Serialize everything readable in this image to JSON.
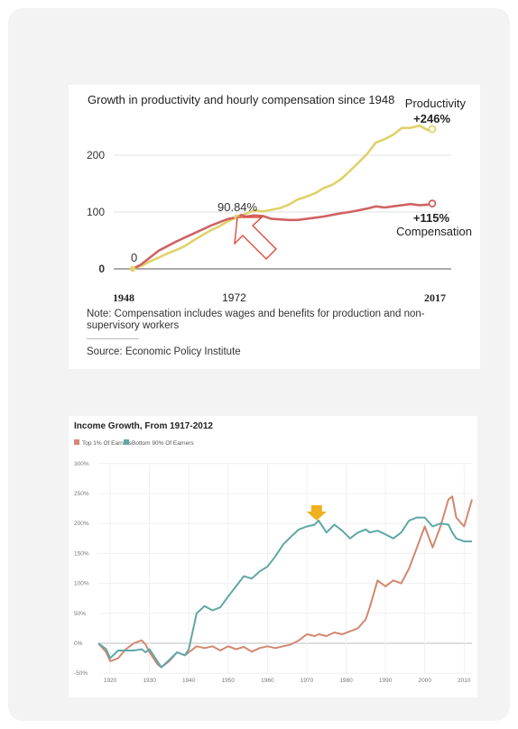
{
  "chart_data": [
    {
      "type": "line",
      "title": "Growth in productivity and hourly compensation since 1948",
      "x_tick_labels": [
        "1948",
        "1972",
        "2017"
      ],
      "y_tick_labels": [
        "0",
        "100",
        "200"
      ],
      "ylim": [
        -10,
        290
      ],
      "xlim": [
        1948,
        2017
      ],
      "grid": true,
      "annotations": {
        "start": "0",
        "mid": "90.84%",
        "productivity_name": "Productivity",
        "productivity_change": "+246%",
        "compensation_change": "+115%",
        "compensation_name": "Compensation"
      },
      "note": "Note: Compensation includes wages and benefits for production and non-supervisory workers",
      "source": "Source: Economic Policy Institute",
      "colors": {
        "productivity": "#e0d26a",
        "compensation": "#cf6363",
        "arrow": "#e04030"
      },
      "series": [
        {
          "key": "productivity",
          "x": [
            1948,
            1950,
            1952,
            1954,
            1956,
            1958,
            1960,
            1962,
            1964,
            1966,
            1968,
            1970,
            1972,
            1973,
            1974,
            1976,
            1978,
            1980,
            1982,
            1984,
            1986,
            1988,
            1990,
            1992,
            1994,
            1996,
            1998,
            2000,
            2002,
            2004,
            2006,
            2008,
            2010,
            2012,
            2014,
            2016,
            2017
          ],
          "values": [
            0,
            5,
            13,
            20,
            27,
            33,
            40,
            50,
            59,
            68,
            75,
            84,
            90.84,
            93,
            97,
            103,
            101,
            104,
            107,
            113,
            122,
            127,
            133,
            142,
            148,
            158,
            172,
            187,
            202,
            222,
            228,
            236,
            248,
            248,
            252,
            244,
            246
          ]
        },
        {
          "key": "compensation",
          "x": [
            1948,
            1950,
            1952,
            1954,
            1956,
            1958,
            1960,
            1962,
            1964,
            1966,
            1968,
            1970,
            1972,
            1973,
            1974,
            1976,
            1978,
            1980,
            1982,
            1984,
            1986,
            1988,
            1990,
            1992,
            1994,
            1996,
            1998,
            2000,
            2002,
            2004,
            2006,
            2008,
            2010,
            2012,
            2014,
            2016,
            2017
          ],
          "values": [
            0,
            8,
            20,
            32,
            40,
            48,
            55,
            62,
            69,
            76,
            82,
            88,
            90.84,
            95,
            92,
            94,
            93,
            88,
            87,
            86,
            86,
            88,
            90,
            92,
            95,
            98,
            100,
            103,
            106,
            110,
            108,
            110,
            112,
            114,
            112,
            113,
            115
          ]
        }
      ]
    },
    {
      "type": "line",
      "title": "Income Growth, From 1917-2012",
      "ylim": [
        -50,
        300
      ],
      "xlim": [
        1917,
        2012
      ],
      "y_tick_labels": [
        "300%",
        "250%",
        "200%",
        "150%",
        "100%",
        "50%",
        "0%",
        "-50%"
      ],
      "x_tick_labels": [
        "1920",
        "1930",
        "1940",
        "1950",
        "1960",
        "1970",
        "1980",
        "1990",
        "2000",
        "2010"
      ],
      "grid": true,
      "legend": "top-left",
      "colors": {
        "top1": "#d3876f",
        "bottom90": "#5ea8a6",
        "arrow": "#f0b020"
      },
      "series": [
        {
          "key": "top1",
          "name": "Top 1% Of Earners",
          "x": [
            1917,
            1919,
            1920,
            1922,
            1924,
            1926,
            1928,
            1929,
            1930,
            1932,
            1933,
            1935,
            1937,
            1939,
            1940,
            1942,
            1944,
            1946,
            1948,
            1950,
            1952,
            1954,
            1956,
            1958,
            1960,
            1962,
            1964,
            1966,
            1968,
            1970,
            1972,
            1973,
            1975,
            1977,
            1979,
            1981,
            1983,
            1985,
            1986,
            1988,
            1990,
            1992,
            1994,
            1996,
            1998,
            2000,
            2002,
            2004,
            2006,
            2007,
            2008,
            2010,
            2012
          ],
          "values": [
            0,
            -15,
            -30,
            -25,
            -10,
            0,
            5,
            -2,
            -15,
            -35,
            -40,
            -30,
            -15,
            -20,
            -15,
            -5,
            -8,
            -5,
            -12,
            -5,
            -10,
            -6,
            -14,
            -8,
            -5,
            -8,
            -5,
            -2,
            5,
            15,
            12,
            15,
            12,
            18,
            15,
            20,
            25,
            40,
            60,
            105,
            95,
            105,
            100,
            125,
            160,
            195,
            160,
            195,
            240,
            245,
            210,
            195,
            240
          ]
        },
        {
          "key": "bottom90",
          "name": "Bottom 90% Of Earners",
          "x": [
            1917,
            1919,
            1920,
            1922,
            1924,
            1926,
            1928,
            1929,
            1930,
            1932,
            1933,
            1935,
            1937,
            1939,
            1940,
            1942,
            1944,
            1946,
            1948,
            1950,
            1952,
            1954,
            1956,
            1958,
            1960,
            1962,
            1964,
            1966,
            1968,
            1970,
            1972,
            1973,
            1975,
            1977,
            1979,
            1981,
            1983,
            1985,
            1986,
            1988,
            1990,
            1992,
            1994,
            1996,
            1998,
            2000,
            2002,
            2004,
            2006,
            2007,
            2008,
            2010,
            2012
          ],
          "values": [
            0,
            -10,
            -25,
            -12,
            -12,
            -12,
            -10,
            -15,
            -10,
            -30,
            -40,
            -28,
            -15,
            -20,
            -10,
            50,
            62,
            55,
            60,
            78,
            95,
            112,
            108,
            120,
            128,
            145,
            165,
            178,
            190,
            195,
            198,
            205,
            185,
            198,
            188,
            175,
            185,
            190,
            185,
            188,
            182,
            175,
            185,
            205,
            210,
            210,
            195,
            200,
            198,
            185,
            175,
            170,
            170
          ]
        }
      ]
    }
  ]
}
